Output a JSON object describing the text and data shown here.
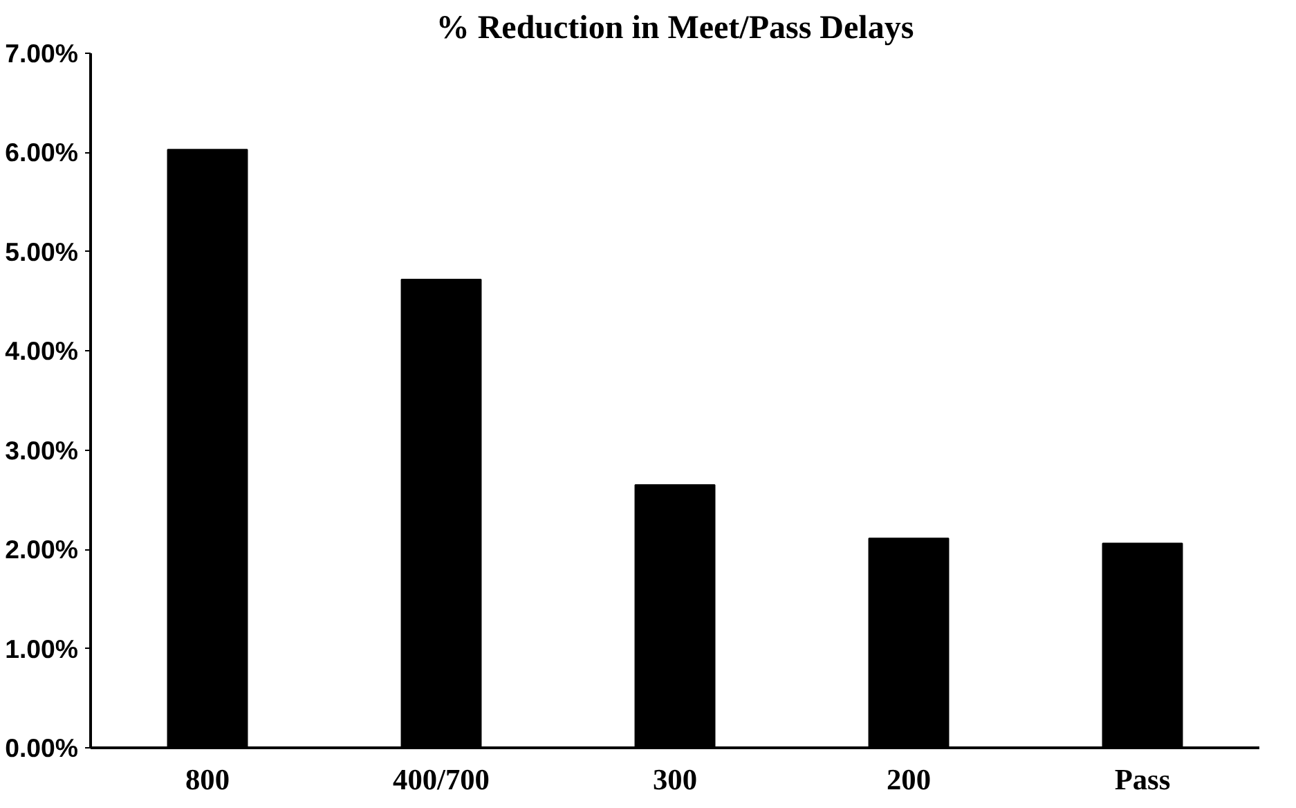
{
  "chart_data": {
    "type": "bar",
    "title": "% Reduction in Meet/Pass Delays",
    "categories": [
      "800",
      "400/700",
      "300",
      "200",
      "Pass"
    ],
    "values": [
      6.03,
      4.72,
      2.65,
      2.11,
      2.06
    ],
    "color": "#000000",
    "ylim": [
      0,
      7
    ],
    "yticks": [
      {
        "value": 0,
        "label": "0.00%"
      },
      {
        "value": 1,
        "label": "1.00%"
      },
      {
        "value": 2,
        "label": "2.00%"
      },
      {
        "value": 3,
        "label": "3.00%"
      },
      {
        "value": 4,
        "label": "4.00%"
      },
      {
        "value": 5,
        "label": "5.00%"
      },
      {
        "value": 6,
        "label": "6.00%"
      },
      {
        "value": 7,
        "label": "7.00%"
      }
    ],
    "grid": false
  }
}
